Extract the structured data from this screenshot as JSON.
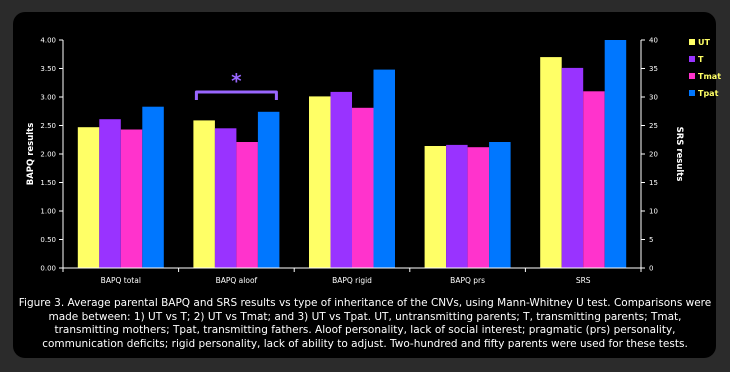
{
  "chart_data": {
    "type": "bar",
    "categories": [
      "BAPQ total",
      "BAPQ aloof",
      "BAPQ rigid",
      "BAPQ prs",
      "SRS"
    ],
    "series": [
      {
        "name": "UT",
        "color": "#ffff66",
        "values": [
          2.47,
          2.59,
          3.01,
          2.14,
          37.0
        ]
      },
      {
        "name": "T",
        "color": "#9933ff",
        "values": [
          2.61,
          2.45,
          3.09,
          2.16,
          35.1
        ]
      },
      {
        "name": "Tmat",
        "color": "#ff33cc",
        "values": [
          2.43,
          2.21,
          2.81,
          2.12,
          31.0
        ]
      },
      {
        "name": "Tpat",
        "color": "#0077ff",
        "values": [
          2.83,
          2.74,
          3.48,
          2.21,
          40.0
        ]
      }
    ],
    "primary_axis": {
      "label": "BAPQ results",
      "range": [
        0,
        4
      ],
      "ticks": [
        "0.00",
        "0.50",
        "1.00",
        "1.50",
        "2.00",
        "2.50",
        "3.00",
        "3.50",
        "4.00"
      ]
    },
    "secondary_axis": {
      "label": "SRS results",
      "range": [
        0,
        40
      ],
      "ticks": [
        "0",
        "5",
        "10",
        "15",
        "20",
        "25",
        "30",
        "35",
        "40"
      ],
      "applies_to": [
        "SRS"
      ]
    },
    "significance": {
      "category": "BAPQ aloof",
      "marker": "*",
      "color": "#9966ff"
    },
    "legend_position": "right",
    "grid": false,
    "caption": "Figure 3. Average parental BAPQ and SRS results vs type of inheritance of the CNVs, using Mann-Whitney U test. Comparisons were made between: 1) UT vs T; 2) UT vs Tmat; and 3) UT vs Tpat. UT, untransmitting parents; T, transmitting parents; Tmat, transmitting mothers; Tpat, transmitting fathers. Aloof personality, lack of social interest; pragmatic (prs) personality, communication deficits; rigid personality, lack of ability to adjust. Two-hundred and fifty parents were used for these tests."
  }
}
